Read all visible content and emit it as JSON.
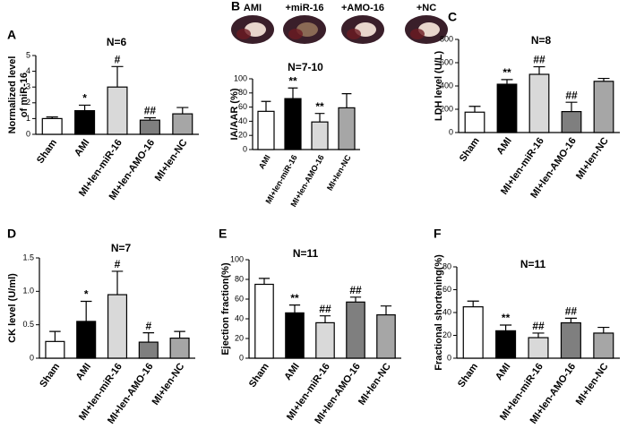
{
  "chart_data": [
    {
      "type": "bar",
      "panel_label": "A",
      "title": "N=6",
      "ylabel": [
        "Normalized level",
        "of miR-16"
      ],
      "categories": [
        "Sham",
        "AMI",
        "MI+len-miR-16",
        "MI+len-AMO-16",
        "MI+len-NC"
      ],
      "values": [
        1.0,
        1.5,
        3.0,
        0.9,
        1.3
      ],
      "errors": [
        0.1,
        0.35,
        1.3,
        0.15,
        0.4
      ],
      "annotations": [
        null,
        "*",
        "#",
        "##",
        null
      ],
      "colors": [
        "#ffffff",
        "#000000",
        "#d9d9d9",
        "#7f7f7f",
        "#a6a6a6"
      ],
      "ylim": [
        0,
        5
      ],
      "yticks": [
        0,
        1,
        2,
        3,
        4,
        5
      ]
    },
    {
      "type": "bar",
      "panel_label": "B",
      "title": "N=7-10",
      "ylabel": "IA/AAR (%)",
      "image_labels": [
        "AMI",
        "+miR-16",
        "+AMO-16",
        "+NC"
      ],
      "categories": [
        "AMI",
        "MI+len-miR-16",
        "MI+len-AMO-16",
        "MI+len-NC"
      ],
      "values": [
        54,
        72,
        39,
        59
      ],
      "errors": [
        14,
        15,
        12,
        20
      ],
      "annotations": [
        null,
        "**",
        "**",
        null
      ],
      "colors": [
        "#ffffff",
        "#000000",
        "#d9d9d9",
        "#a6a6a6"
      ],
      "ylim": [
        0,
        100
      ],
      "yticks": [
        0,
        20,
        40,
        60,
        80,
        100
      ]
    },
    {
      "type": "bar",
      "panel_label": "C",
      "title": "N=8",
      "ylabel": "LDH level (U/L)",
      "categories": [
        "Sham",
        "AMI",
        "MI+len-miR-16",
        "MI+len-AMO-16",
        "MI+len-NC"
      ],
      "values": [
        175,
        415,
        500,
        180,
        440
      ],
      "errors": [
        50,
        40,
        65,
        80,
        25
      ],
      "annotations": [
        null,
        "**",
        "##",
        "##",
        null
      ],
      "colors": [
        "#ffffff",
        "#000000",
        "#d9d9d9",
        "#7f7f7f",
        "#a6a6a6"
      ],
      "ylim": [
        0,
        800
      ],
      "yticks": [
        0,
        200,
        400,
        600,
        800
      ]
    },
    {
      "type": "bar",
      "panel_label": "D",
      "title": "N=7",
      "ylabel": "CK level (U/ml)",
      "categories": [
        "Sham",
        "AMI",
        "MI+len-miR-16",
        "MI+len-AMO-16",
        "MI+len-NC"
      ],
      "values": [
        0.25,
        0.55,
        0.95,
        0.24,
        0.3
      ],
      "errors": [
        0.15,
        0.3,
        0.35,
        0.14,
        0.1
      ],
      "annotations": [
        null,
        "*",
        "#",
        "#",
        null
      ],
      "colors": [
        "#ffffff",
        "#000000",
        "#d9d9d9",
        "#7f7f7f",
        "#a6a6a6"
      ],
      "ylim": [
        0,
        1.5
      ],
      "yticks": [
        0,
        0.5,
        {
          "value": 1,
          "label": "1.0"
        },
        1.5
      ]
    },
    {
      "type": "bar",
      "panel_label": "E",
      "title": "N=11",
      "ylabel": "Ejection fraction(%)",
      "categories": [
        "Sham",
        "AMI",
        "MI+len-miR-16",
        "MI+len-AMO-16",
        "MI+len-NC"
      ],
      "values": [
        75,
        46,
        36,
        57,
        44
      ],
      "errors": [
        6,
        8,
        7,
        5,
        9
      ],
      "annotations": [
        null,
        "**",
        "##",
        "##",
        null
      ],
      "colors": [
        "#ffffff",
        "#000000",
        "#d9d9d9",
        "#7f7f7f",
        "#a6a6a6"
      ],
      "ylim": [
        0,
        100
      ],
      "yticks": [
        0,
        20,
        40,
        60,
        80,
        100
      ]
    },
    {
      "type": "bar",
      "panel_label": "F",
      "title": "N=11",
      "ylabel": "Fractional shortening(%)",
      "categories": [
        "Sham",
        "AMI",
        "MI+len-miR-16",
        "MI+len-AMO-16",
        "MI+len-NC"
      ],
      "values": [
        45,
        24,
        18,
        31,
        22
      ],
      "errors": [
        5,
        5,
        4,
        4,
        5
      ],
      "annotations": [
        null,
        "**",
        "##",
        "##",
        null
      ],
      "colors": [
        "#ffffff",
        "#000000",
        "#d9d9d9",
        "#7f7f7f",
        "#a6a6a6"
      ],
      "ylim": [
        0,
        80
      ],
      "yticks": [
        0,
        20,
        40,
        60,
        80
      ]
    }
  ]
}
